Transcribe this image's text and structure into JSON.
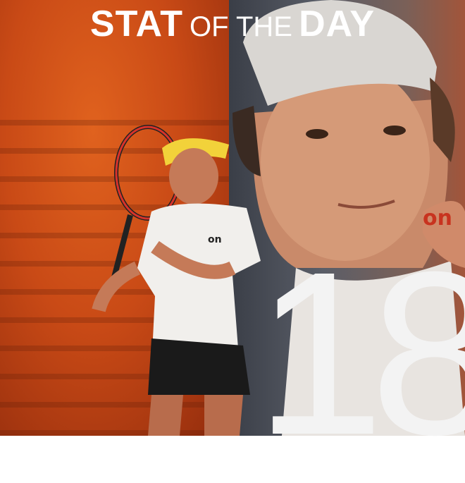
{
  "title": {
    "stat": "STAT",
    "of_the": "OF THE",
    "day": "DAY"
  },
  "stat_value": "18",
  "logos": {
    "shirt": "on"
  },
  "colors": {
    "left_bg": "#c94a16",
    "right_bg": "#4a4e57",
    "text": "#ffffff"
  }
}
